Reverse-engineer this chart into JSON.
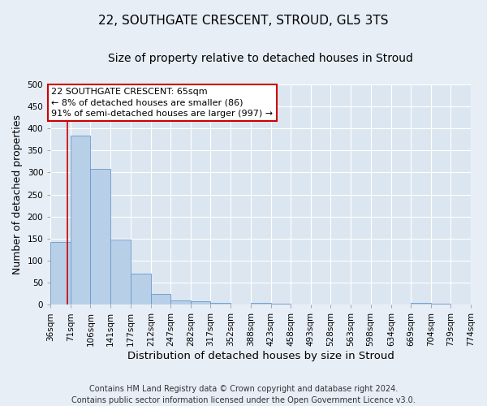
{
  "title": "22, SOUTHGATE CRESCENT, STROUD, GL5 3TS",
  "subtitle": "Size of property relative to detached houses in Stroud",
  "xlabel": "Distribution of detached houses by size in Stroud",
  "ylabel": "Number of detached properties",
  "footer_line1": "Contains HM Land Registry data © Crown copyright and database right 2024.",
  "footer_line2": "Contains public sector information licensed under the Open Government Licence v3.0.",
  "bin_edges": [
    36,
    71,
    106,
    141,
    177,
    212,
    247,
    282,
    317,
    352,
    388,
    423,
    458,
    493,
    528,
    563,
    598,
    634,
    669,
    704,
    739
  ],
  "bar_heights": [
    143,
    383,
    308,
    148,
    70,
    24,
    10,
    7,
    4,
    1,
    4,
    2,
    0,
    0,
    0,
    0,
    0,
    0,
    4,
    2
  ],
  "bar_color": "#b8cfe8",
  "bar_edge_color": "#6699cc",
  "property_size": 65,
  "property_line_color": "#cc0000",
  "annotation_text": "22 SOUTHGATE CRESCENT: 65sqm\n← 8% of detached houses are smaller (86)\n91% of semi-detached houses are larger (997) →",
  "annotation_box_color": "#ffffff",
  "annotation_box_edge_color": "#cc0000",
  "ylim": [
    0,
    500
  ],
  "yticks": [
    0,
    50,
    100,
    150,
    200,
    250,
    300,
    350,
    400,
    450,
    500
  ],
  "background_color": "#e8eef6",
  "plot_background_color": "#dce6f0",
  "grid_color": "#ffffff",
  "title_fontsize": 11,
  "subtitle_fontsize": 10,
  "axis_label_fontsize": 9,
  "tick_fontsize": 7.5,
  "annotation_fontsize": 8,
  "footer_fontsize": 7
}
